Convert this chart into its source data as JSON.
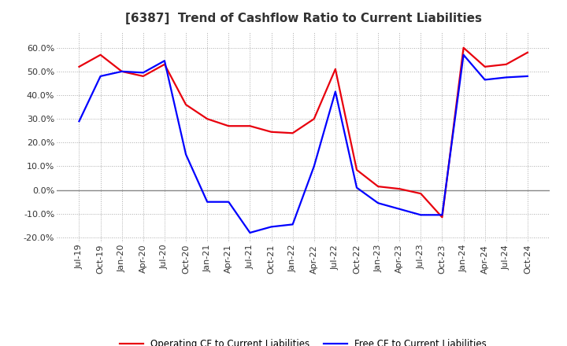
{
  "title": "[6387]  Trend of Cashflow Ratio to Current Liabilities",
  "x_labels": [
    "Jul-19",
    "Oct-19",
    "Jan-20",
    "Apr-20",
    "Jul-20",
    "Oct-20",
    "Jan-21",
    "Apr-21",
    "Jul-21",
    "Oct-21",
    "Jan-22",
    "Apr-22",
    "Jul-22",
    "Oct-22",
    "Jan-23",
    "Apr-23",
    "Jul-23",
    "Oct-23",
    "Jan-24",
    "Apr-24",
    "Jul-24",
    "Oct-24"
  ],
  "operating_cf": [
    52.0,
    57.0,
    50.0,
    48.0,
    53.0,
    36.0,
    30.0,
    27.0,
    27.0,
    24.5,
    24.0,
    30.0,
    51.0,
    8.5,
    1.5,
    0.5,
    -1.5,
    -11.5,
    60.0,
    52.0,
    53.0,
    58.0
  ],
  "free_cf": [
    29.0,
    48.0,
    50.0,
    49.5,
    54.5,
    15.0,
    -5.0,
    -5.0,
    -18.0,
    -15.5,
    -14.5,
    10.0,
    41.5,
    1.0,
    -5.5,
    -8.0,
    -10.5,
    -10.5,
    57.0,
    46.5,
    47.5,
    48.0
  ],
  "operating_color": "#e8000d",
  "free_color": "#0000ff",
  "ylim": [
    -22.0,
    67.0
  ],
  "yticks": [
    -20.0,
    -10.0,
    0.0,
    10.0,
    20.0,
    30.0,
    40.0,
    50.0,
    60.0
  ],
  "legend_operating": "Operating CF to Current Liabilities",
  "legend_free": "Free CF to Current Liabilities",
  "bg_color": "#ffffff",
  "plot_bg_color": "#ffffff",
  "grid_color": "#aaaaaa",
  "line_width": 1.6,
  "title_fontsize": 11,
  "tick_fontsize": 8
}
